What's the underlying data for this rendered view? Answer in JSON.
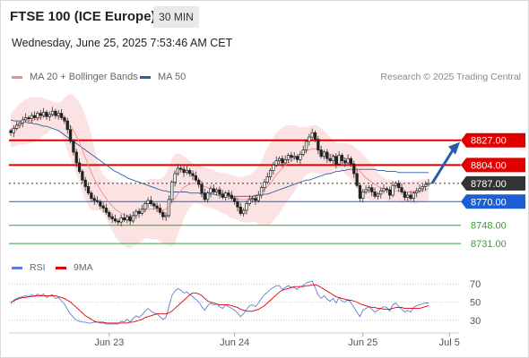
{
  "header": {
    "title": "FTSE 100 (ICE Europe)",
    "interval": "30 MIN",
    "datetime": "Wednesday, June 25, 2025 7:53:46 AM CET"
  },
  "legend": {
    "ma20": "MA 20 + Bollinger Bands",
    "ma50": "MA 50",
    "ma20_color": "#f08c8c",
    "ma50_color": "#2f5f9e",
    "credit": "Research © 2025 Trading Central"
  },
  "rsi_legend": {
    "rsi": "RSI",
    "ma9": "9MA",
    "rsi_color": "#5b7fd6",
    "ma9_color": "#e00000"
  },
  "chart_data": [
    {
      "type": "candlestick",
      "title": "FTSE 100 (ICE Europe)",
      "interval": "30 MIN",
      "ylim": [
        8722,
        8875
      ],
      "current_price": "8787.00",
      "levels": [
        {
          "label": "8827.00",
          "value": 8827,
          "color": "#e00000",
          "style": "resistance"
        },
        {
          "label": "8804.00",
          "value": 8804,
          "color": "#e00000",
          "style": "resistance"
        },
        {
          "label": "8787.00",
          "value": 8787,
          "color": "#333333",
          "style": "last"
        },
        {
          "label": "8770.00",
          "value": 8770,
          "color": "#1a5fd6",
          "style": "pivot"
        },
        {
          "label": "8748.00",
          "value": 8748,
          "color": "#3b9a3b",
          "style": "support"
        },
        {
          "label": "8731.00",
          "value": 8731,
          "color": "#3b9a3b",
          "style": "support"
        }
      ],
      "close": [
        8834,
        8838,
        8841,
        8843,
        8846,
        8848,
        8847,
        8850,
        8848,
        8852,
        8850,
        8853,
        8849,
        8851,
        8854,
        8850,
        8852,
        8848,
        8845,
        8837,
        8826,
        8816,
        8806,
        8798,
        8790,
        8784,
        8778,
        8773,
        8771,
        8770,
        8766,
        8764,
        8760,
        8756,
        8754,
        8752,
        8751,
        8755,
        8753,
        8756,
        8752,
        8757,
        8761,
        8759,
        8763,
        8768,
        8771,
        8768,
        8766,
        8764,
        8760,
        8756,
        8757,
        8772,
        8788,
        8796,
        8801,
        8800,
        8797,
        8799,
        8796,
        8794,
        8790,
        8786,
        8778,
        8772,
        8778,
        8782,
        8779,
        8781,
        8777,
        8774,
        8778,
        8776,
        8773,
        8770,
        8765,
        8759,
        8762,
        8768,
        8772,
        8773,
        8771,
        8776,
        8783,
        8788,
        8793,
        8799,
        8804,
        8808,
        8810,
        8806,
        8809,
        8813,
        8811,
        8812,
        8809,
        8814,
        8818,
        8826,
        8830,
        8834,
        8828,
        8818,
        8812,
        8816,
        8810,
        8808,
        8812,
        8805,
        8813,
        8808,
        8806,
        8810,
        8805,
        8796,
        8785,
        8773,
        8779,
        8781,
        8783,
        8779,
        8775,
        8777,
        8780,
        8782,
        8781,
        8776,
        8785,
        8787,
        8783,
        8779,
        8774,
        8776,
        8773,
        8778,
        8780,
        8782,
        8784,
        8786,
        8787
      ],
      "ma20_line": [
        8836,
        8838,
        8840,
        8842,
        8843,
        8844,
        8845,
        8845,
        8846,
        8847,
        8848,
        8849,
        8849,
        8850,
        8850,
        8850,
        8849,
        8848,
        8846,
        8843,
        8840,
        8836,
        8831,
        8825,
        8818,
        8811,
        8804,
        8797,
        8791,
        8786,
        8781,
        8777,
        8773,
        8769,
        8766,
        8763,
        8761,
        8759,
        8758,
        8757,
        8757,
        8757,
        8758,
        8759,
        8760,
        8762,
        8763,
        8763,
        8763,
        8763,
        8762,
        8762,
        8763,
        8766,
        8769,
        8773,
        8777,
        8780,
        8783,
        8785,
        8786,
        8787,
        8787,
        8786,
        8785,
        8784,
        8783,
        8782,
        8781,
        8780,
        8779,
        8778,
        8777,
        8776,
        8775,
        8774,
        8773,
        8772,
        8772,
        8772,
        8773,
        8774,
        8775,
        8776,
        8778,
        8781,
        8784,
        8787,
        8791,
        8795,
        8798,
        8801,
        8804,
        8806,
        8808,
        8810,
        8812,
        8813,
        8815,
        8817,
        8818,
        8819,
        8819,
        8818,
        8817,
        8816,
        8815,
        8814,
        8813,
        8812,
        8812,
        8811,
        8810,
        8809,
        8807,
        8804,
        8801,
        8798,
        8795,
        8792,
        8790,
        8788,
        8786,
        8784,
        8783,
        8782,
        8781,
        8780,
        8780,
        8780,
        8780,
        8779,
        8779,
        8779,
        8779,
        8779,
        8779,
        8780,
        8780,
        8781,
        8782
      ],
      "bb_upper": [
        8852,
        8855,
        8858,
        8861,
        8863,
        8865,
        8866,
        8867,
        8867,
        8867,
        8867,
        8866,
        8865,
        8864,
        8863,
        8862,
        8862,
        8863,
        8866,
        8869,
        8870,
        8869,
        8866,
        8862,
        8857,
        8850,
        8842,
        8832,
        8820,
        8810,
        8800,
        8795,
        8792,
        8790,
        8789,
        8789,
        8788,
        8788,
        8787,
        8787,
        8787,
        8786,
        8786,
        8786,
        8787,
        8788,
        8790,
        8791,
        8791,
        8791,
        8791,
        8792,
        8796,
        8803,
        8810,
        8814,
        8815,
        8814,
        8812,
        8810,
        8808,
        8806,
        8805,
        8804,
        8803,
        8802,
        8801,
        8800,
        8799,
        8798,
        8797,
        8797,
        8796,
        8796,
        8795,
        8794,
        8793,
        8793,
        8793,
        8794,
        8795,
        8797,
        8799,
        8803,
        8808,
        8814,
        8820,
        8825,
        8830,
        8834,
        8837,
        8839,
        8840,
        8841,
        8841,
        8841,
        8840,
        8839,
        8839,
        8839,
        8840,
        8841,
        8841,
        8840,
        8838,
        8836,
        8833,
        8830,
        8827,
        8825,
        8824,
        8824,
        8824,
        8824,
        8823,
        8821,
        8819,
        8817,
        8814,
        8811,
        8808,
        8805,
        8801,
        8797,
        8794,
        8792,
        8791,
        8790,
        8789,
        8789,
        8789,
        8789,
        8789,
        8789,
        8789,
        8790,
        8790,
        8790,
        8791,
        8791,
        8792
      ],
      "bb_lower": [
        8820,
        8821,
        8822,
        8823,
        8823,
        8823,
        8824,
        8824,
        8825,
        8827,
        8829,
        8832,
        8833,
        8836,
        8837,
        8838,
        8836,
        8833,
        8826,
        8817,
        8810,
        8803,
        8796,
        8788,
        8779,
        8772,
        8766,
        8762,
        8762,
        8762,
        8762,
        8759,
        8754,
        8748,
        8743,
        8737,
        8734,
        8730,
        8729,
        8727,
        8727,
        8728,
        8730,
        8732,
        8733,
        8736,
        8736,
        8735,
        8735,
        8735,
        8733,
        8732,
        8730,
        8729,
        8728,
        8732,
        8739,
        8746,
        8754,
        8760,
        8764,
        8768,
        8769,
        8768,
        8767,
        8766,
        8765,
        8764,
        8763,
        8762,
        8761,
        8759,
        8758,
        8756,
        8755,
        8754,
        8753,
        8751,
        8751,
        8750,
        8751,
        8751,
        8751,
        8749,
        8748,
        8748,
        8748,
        8749,
        8752,
        8756,
        8759,
        8763,
        8768,
        8771,
        8775,
        8779,
        8784,
        8787,
        8791,
        8795,
        8796,
        8797,
        8797,
        8796,
        8796,
        8796,
        8797,
        8798,
        8799,
        8799,
        8800,
        8798,
        8796,
        8794,
        8791,
        8787,
        8783,
        8779,
        8776,
        8773,
        8772,
        8771,
        8771,
        8771,
        8772,
        8772,
        8771,
        8770,
        8771,
        8771,
        8771,
        8769,
        8769,
        8769,
        8769,
        8768,
        8768,
        8770,
        8769,
        8771,
        8772
      ],
      "ma50_line": [
        8846,
        8845,
        8845,
        8845,
        8844,
        8844,
        8843,
        8843,
        8842,
        8842,
        8841,
        8840,
        8840,
        8839,
        8838,
        8837,
        8836,
        8834,
        8832,
        8830,
        8828,
        8826,
        8824,
        8822,
        8820,
        8818,
        8816,
        8814,
        8812,
        8810,
        8808,
        8806,
        8804,
        8802,
        8800,
        8798,
        8797,
        8795,
        8794,
        8792,
        8791,
        8790,
        8789,
        8788,
        8787,
        8786,
        8785,
        8784,
        8783,
        8782,
        8781,
        8780,
        8780,
        8779,
        8779,
        8779,
        8779,
        8779,
        8779,
        8779,
        8778,
        8778,
        8778,
        8778,
        8777,
        8777,
        8777,
        8777,
        8777,
        8776,
        8776,
        8776,
        8776,
        8775,
        8775,
        8775,
        8775,
        8775,
        8775,
        8775,
        8775,
        8775,
        8776,
        8776,
        8776,
        8777,
        8777,
        8778,
        8779,
        8780,
        8781,
        8782,
        8783,
        8784,
        8785,
        8786,
        8787,
        8788,
        8789,
        8790,
        8790,
        8791,
        8792,
        8793,
        8794,
        8795,
        8796,
        8796,
        8797,
        8798,
        8798,
        8799,
        8799,
        8800,
        8800,
        8800,
        8800,
        8800,
        8800,
        8800,
        8800,
        8800,
        8800,
        8799,
        8799,
        8799,
        8798,
        8798,
        8798,
        8798,
        8797,
        8797,
        8797,
        8797,
        8797,
        8797,
        8797,
        8797,
        8797,
        8797,
        8797
      ],
      "forecast_arrow": {
        "from": 8787,
        "to": 8827
      },
      "x_ticks": [
        {
          "label": "Jun 23",
          "index": 33
        },
        {
          "label": "Jun 24",
          "index": 75
        },
        {
          "label": "Jun 25",
          "index": 118
        },
        {
          "label": "Jul 5",
          "index": 147
        }
      ]
    },
    {
      "type": "line",
      "title": "RSI",
      "ylim": [
        20,
        80
      ],
      "y_ticks": [
        "70",
        "50",
        "30"
      ],
      "series": [
        {
          "name": "RSI",
          "color": "#5b7fd6",
          "values": [
            48,
            52,
            54,
            55,
            56,
            57,
            56,
            58,
            56,
            59,
            57,
            59,
            55,
            57,
            58,
            54,
            55,
            51,
            48,
            42,
            37,
            33,
            30,
            29,
            28,
            28,
            27,
            27,
            28,
            28,
            27,
            27,
            26,
            26,
            26,
            26,
            26,
            29,
            28,
            31,
            28,
            32,
            35,
            33,
            36,
            40,
            43,
            40,
            38,
            37,
            34,
            31,
            33,
            45,
            57,
            62,
            65,
            63,
            60,
            61,
            58,
            56,
            53,
            50,
            45,
            41,
            46,
            49,
            47,
            48,
            45,
            43,
            47,
            45,
            43,
            41,
            38,
            34,
            37,
            42,
            46,
            47,
            45,
            49,
            54,
            58,
            61,
            64,
            66,
            68,
            68,
            64,
            66,
            68,
            66,
            66,
            64,
            67,
            68,
            71,
            72,
            73,
            66,
            58,
            54,
            57,
            53,
            51,
            54,
            49,
            55,
            51,
            50,
            53,
            49,
            44,
            39,
            34,
            41,
            43,
            45,
            42,
            39,
            41,
            43,
            45,
            44,
            40,
            47,
            49,
            45,
            42,
            39,
            41,
            39,
            44,
            46,
            47,
            48,
            49,
            49
          ]
        },
        {
          "name": "9MA",
          "color": "#e00000",
          "values": [
            50,
            51,
            53,
            54,
            55,
            55,
            56,
            56,
            57,
            57,
            57,
            57,
            57,
            57,
            57,
            57,
            56,
            55,
            54,
            52,
            50,
            47,
            44,
            41,
            38,
            35,
            33,
            31,
            29,
            28,
            28,
            28,
            27,
            27,
            27,
            27,
            27,
            27,
            27,
            27,
            28,
            28,
            29,
            30,
            31,
            33,
            34,
            35,
            36,
            37,
            37,
            37,
            37,
            38,
            40,
            43,
            46,
            49,
            52,
            55,
            58,
            60,
            60,
            59,
            57,
            54,
            51,
            50,
            49,
            48,
            47,
            47,
            47,
            47,
            46,
            45,
            44,
            42,
            41,
            40,
            40,
            40,
            41,
            42,
            44,
            46,
            49,
            52,
            55,
            58,
            61,
            63,
            64,
            65,
            66,
            67,
            67,
            67,
            67,
            68,
            68,
            69,
            69,
            68,
            66,
            64,
            62,
            60,
            58,
            56,
            55,
            54,
            53,
            52,
            52,
            51,
            50,
            48,
            47,
            46,
            45,
            44,
            44,
            43,
            43,
            42,
            42,
            42,
            43,
            44,
            44,
            44,
            43,
            43,
            43,
            43,
            43,
            43,
            44,
            45,
            46
          ]
        }
      ]
    }
  ]
}
